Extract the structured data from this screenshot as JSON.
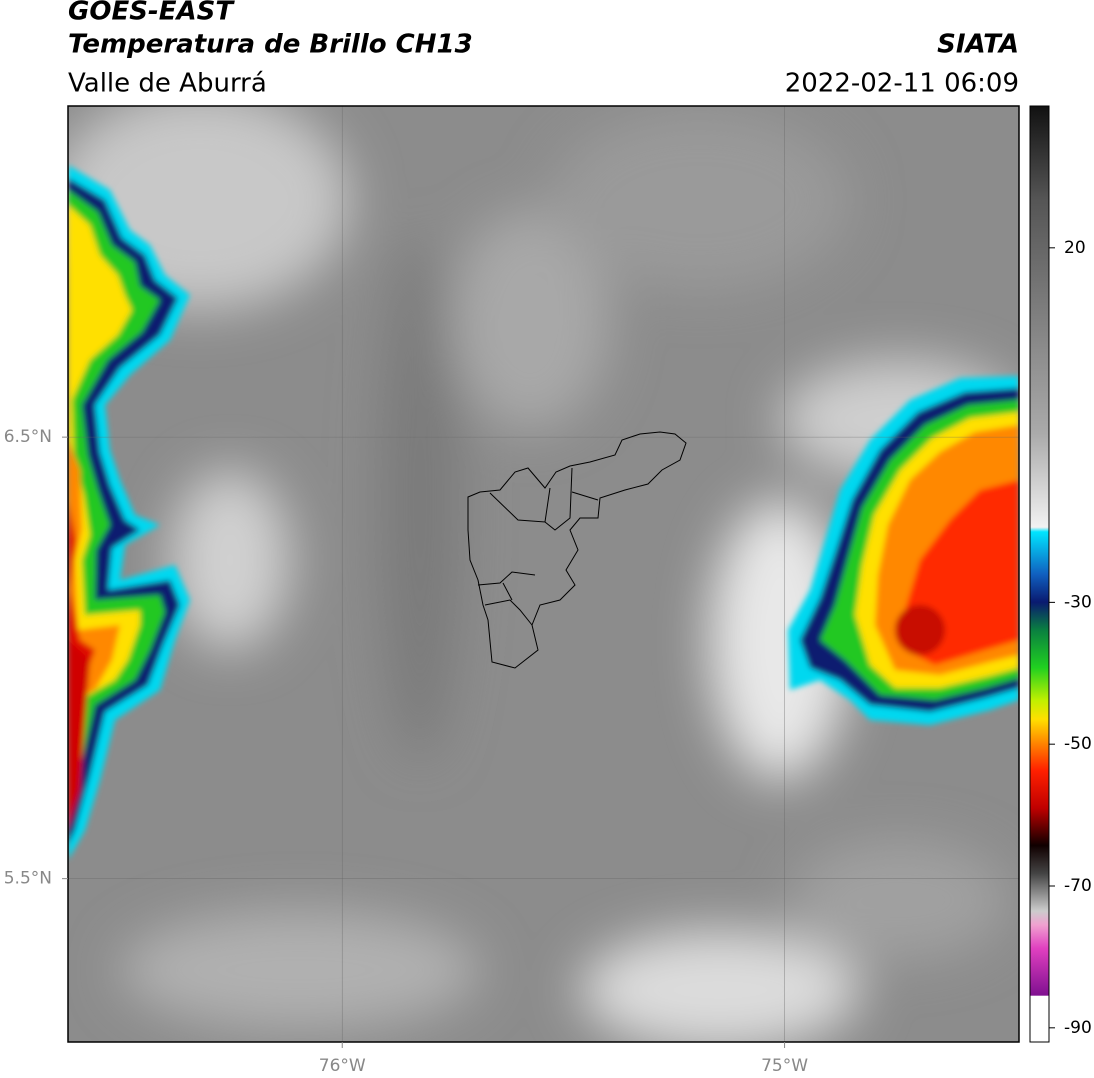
{
  "header": {
    "title": "GOES-EAST",
    "subtitle": "Temperatura de Brillo CH13",
    "region": "Valle de Aburrá",
    "source": "SIATA",
    "datetime": "2022-02-11 06:09"
  },
  "map": {
    "xlim": [
      -76.62,
      -74.47
    ],
    "ylim": [
      5.13,
      7.25
    ],
    "xticks": [
      {
        "value": -76,
        "label": "76°W"
      },
      {
        "value": -75,
        "label": "75°W"
      }
    ],
    "yticks": [
      {
        "value": 6.5,
        "label": "6.5°N"
      },
      {
        "value": 5.5,
        "label": "5.5°N"
      }
    ]
  },
  "colorbar": {
    "clim": [
      -92,
      40
    ],
    "ticks": [
      20,
      -30,
      -50,
      -70,
      -90
    ]
  }
}
